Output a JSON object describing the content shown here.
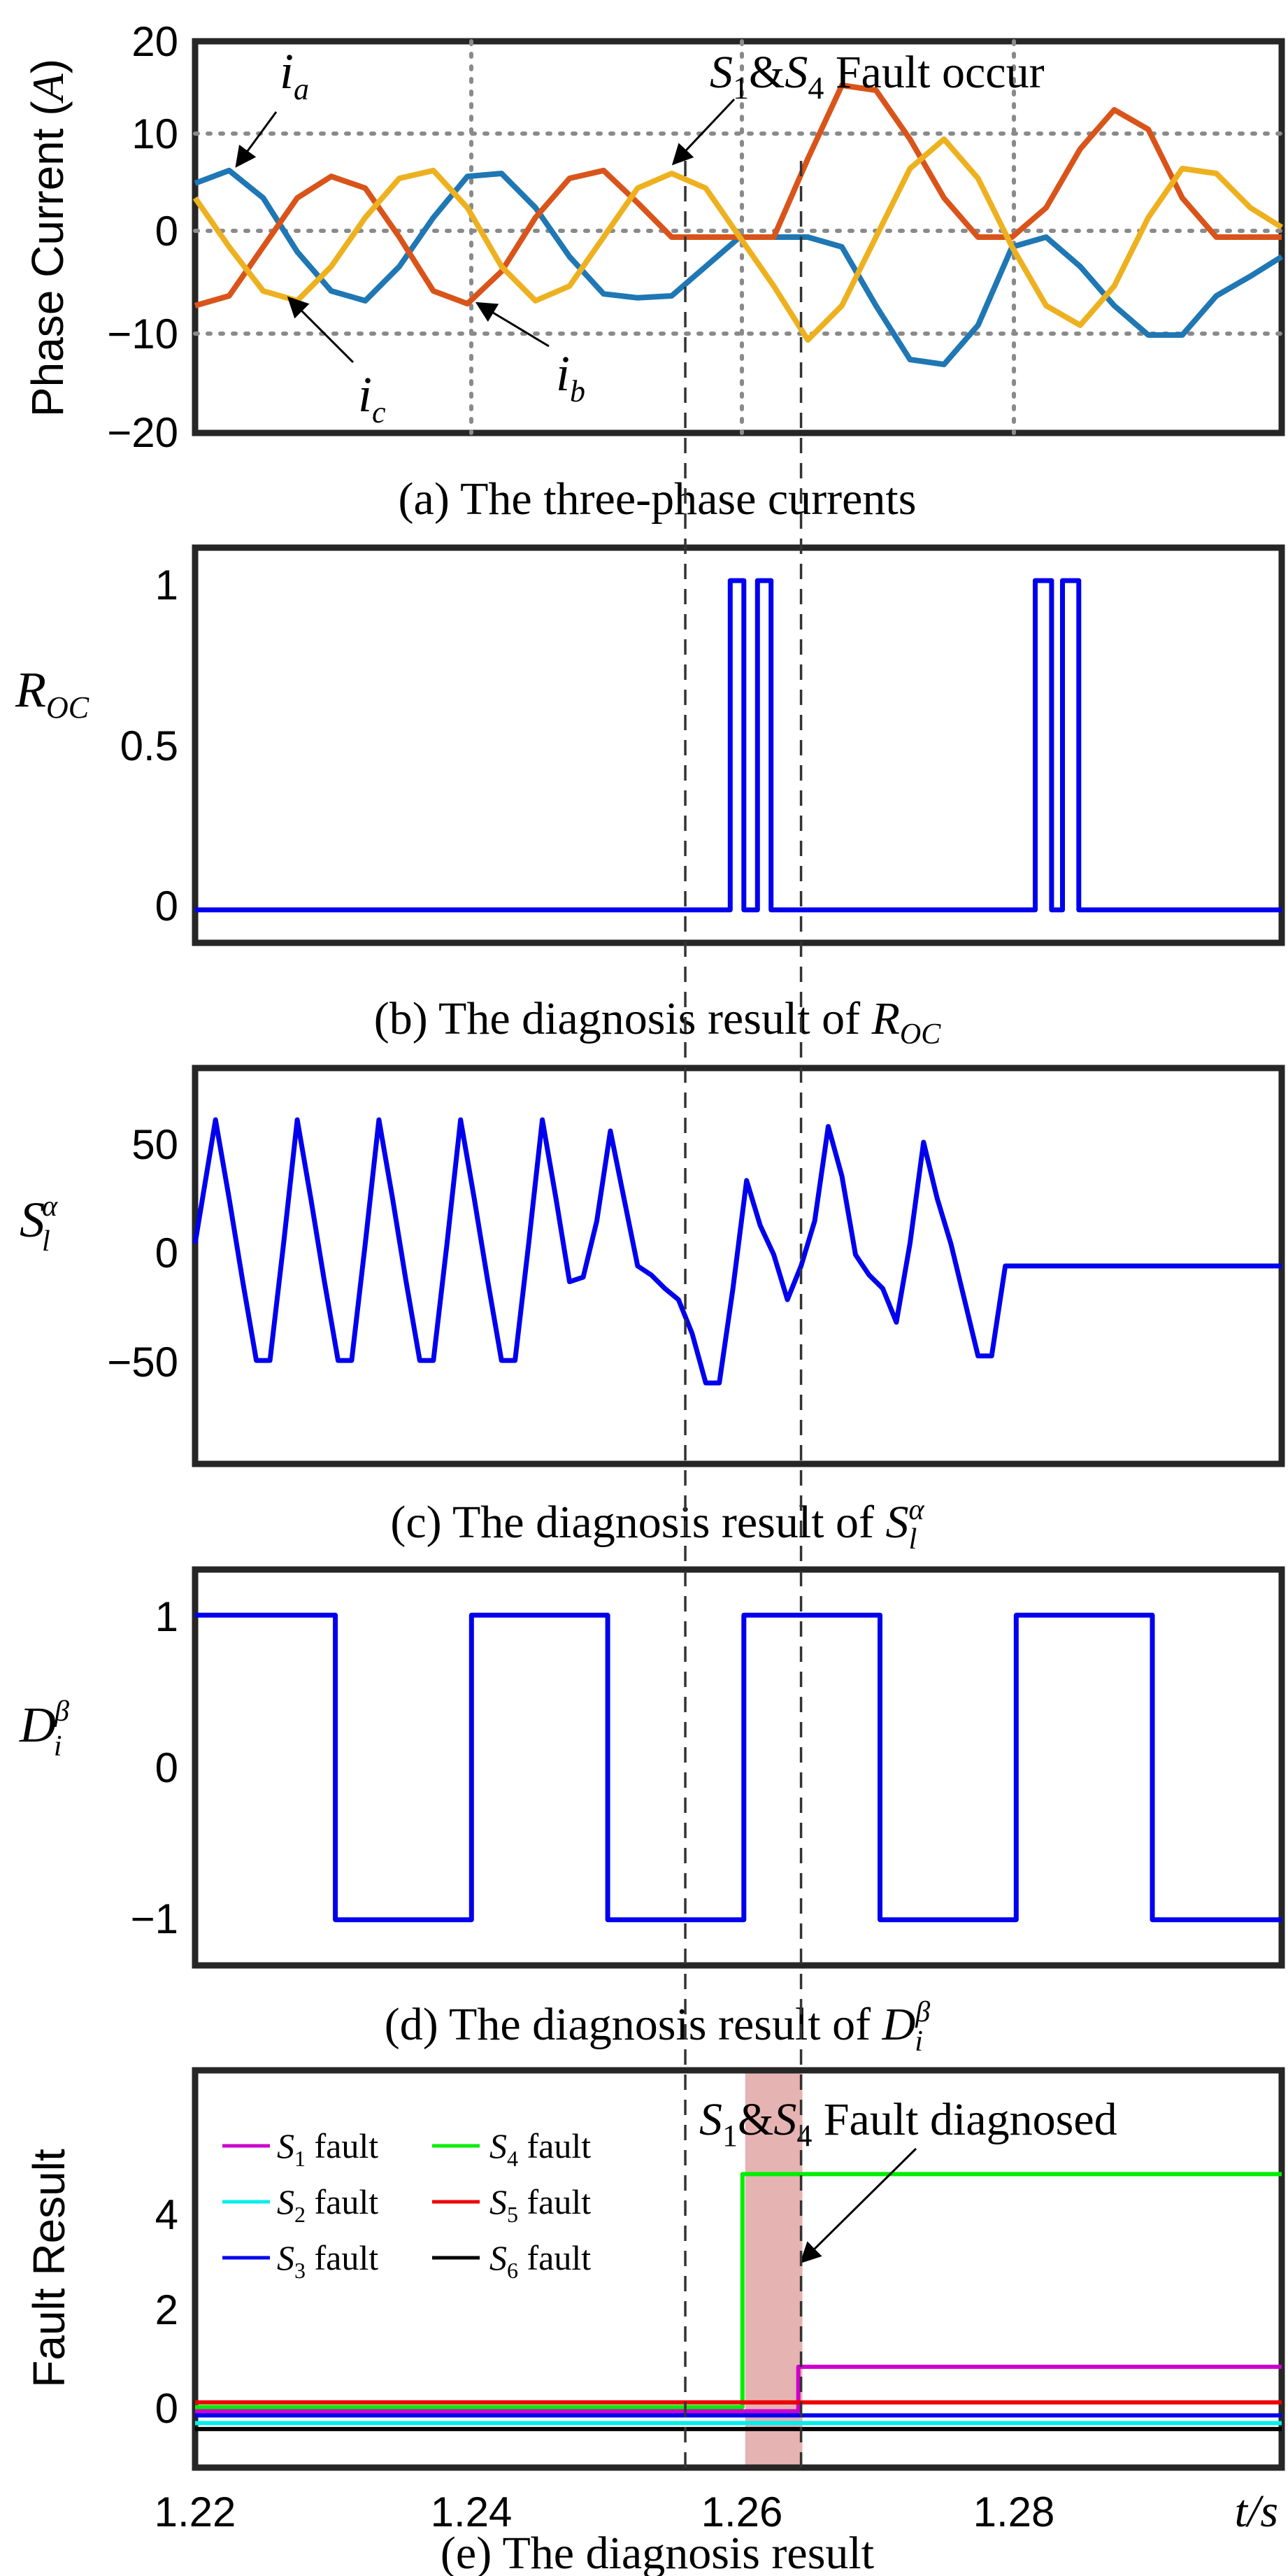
{
  "figure": {
    "xaxis": {
      "ticks": [
        "1.22",
        "1.24",
        "1.26",
        "1.28"
      ],
      "label": "t/s"
    },
    "markers": {
      "fault_time": 1.256,
      "diagnosed_time": 1.2645
    }
  },
  "chart_data": [
    {
      "id": "a",
      "type": "line",
      "caption": "(a) The three-phase currents",
      "ylabel": "Phase Current (A)",
      "yticks": [
        "20",
        "10",
        "0",
        "−10",
        "−20"
      ],
      "xlim": [
        1.22,
        1.2998
      ],
      "ylim": [
        -20,
        20
      ],
      "grid": true,
      "series": [
        {
          "name": "i_a",
          "color": "#1f77b4",
          "x": [
            1.22,
            1.2225,
            1.225,
            1.2275,
            1.23,
            1.2325,
            1.235,
            1.2375,
            1.24,
            1.2425,
            1.245,
            1.2475,
            1.25,
            1.2525,
            1.255,
            1.2575,
            1.26,
            1.2625,
            1.265,
            1.2675,
            1.27,
            1.2725,
            1.275,
            1.2775,
            1.28,
            1.2825,
            1.285,
            1.2875,
            1.29,
            1.2925,
            1.295,
            1.2975,
            1.2998
          ],
          "y": [
            5.5,
            6.8,
            4,
            -1.5,
            -5.5,
            -6.5,
            -3,
            2,
            6.2,
            6.5,
            3,
            -2,
            -5.8,
            -6.2,
            -6,
            -3,
            0,
            0,
            0,
            -1,
            -7,
            -12.5,
            -13,
            -9,
            -1,
            0,
            -3,
            -7,
            -10,
            -10,
            -6,
            -4,
            -2
          ]
        },
        {
          "name": "i_b",
          "color": "#d9541a",
          "x": [
            1.22,
            1.2225,
            1.225,
            1.2275,
            1.23,
            1.2325,
            1.235,
            1.2375,
            1.24,
            1.2425,
            1.245,
            1.2475,
            1.25,
            1.2525,
            1.255,
            1.2575,
            1.26,
            1.2625,
            1.265,
            1.2675,
            1.27,
            1.2725,
            1.275,
            1.2775,
            1.28,
            1.2825,
            1.285,
            1.2875,
            1.29,
            1.2925,
            1.295,
            1.2975,
            1.2998
          ],
          "y": [
            -7,
            -6,
            -1,
            4,
            6.2,
            5,
            0,
            -5.5,
            -6.8,
            -3.5,
            2,
            6,
            6.8,
            3.5,
            0,
            0,
            0,
            0,
            8,
            15.5,
            15,
            10,
            4,
            0,
            0,
            3,
            9,
            13,
            11,
            4,
            0,
            0,
            0
          ]
        },
        {
          "name": "i_c",
          "color": "#edb120",
          "x": [
            1.22,
            1.2225,
            1.225,
            1.2275,
            1.23,
            1.2325,
            1.235,
            1.2375,
            1.24,
            1.2425,
            1.245,
            1.2475,
            1.25,
            1.2525,
            1.255,
            1.2575,
            1.26,
            1.2625,
            1.265,
            1.2675,
            1.27,
            1.2725,
            1.275,
            1.2775,
            1.28,
            1.2825,
            1.285,
            1.2875,
            1.29,
            1.2925,
            1.295,
            1.2975,
            1.2998
          ],
          "y": [
            4,
            -1,
            -5.5,
            -6.5,
            -3,
            2,
            6,
            6.8,
            3,
            -3,
            -6.5,
            -5,
            0,
            5,
            6.5,
            5,
            0,
            -5,
            -10.5,
            -7,
            0,
            7,
            10,
            6,
            -1,
            -7,
            -9,
            -5,
            2,
            7,
            6.5,
            3,
            1
          ]
        }
      ],
      "annotations": [
        "i_a",
        "i_b",
        "i_c",
        "S₁&S₄ Fault occur"
      ]
    },
    {
      "id": "b",
      "type": "line",
      "caption": "(b) The diagnosis result of R_OC",
      "ylabel": "R_OC",
      "yticks": [
        "1",
        "0.5",
        "0"
      ],
      "xlim": [
        1.22,
        1.2998
      ],
      "ylim": [
        -0.1,
        1.1
      ],
      "series": [
        {
          "name": "R_OC",
          "color": "#0000ee",
          "x": [
            1.22,
            1.2593,
            1.2593,
            1.2603,
            1.2603,
            1.2613,
            1.2613,
            1.2623,
            1.2623,
            1.2655,
            1.2655,
            1.2675,
            1.2675,
            1.2817,
            1.2817,
            1.2829,
            1.2829,
            1.2837,
            1.2837,
            1.2849,
            1.2849,
            1.2998
          ],
          "y": [
            0,
            0,
            1,
            1,
            0,
            0,
            1,
            1,
            0,
            0,
            0,
            0,
            0,
            0,
            1,
            1,
            0,
            0,
            1,
            1,
            0,
            0
          ]
        }
      ]
    },
    {
      "id": "c",
      "type": "line",
      "caption": "(c) The diagnosis result of S_l^α",
      "ylabel": "S_l^α",
      "yticks": [
        "50",
        "0",
        "−50"
      ],
      "xlim": [
        1.22,
        1.2998
      ],
      "ylim": [
        -88,
        88
      ],
      "series": [
        {
          "name": "S_l^alpha",
          "color": "#0000ee",
          "x": [
            1.22,
            1.2215,
            1.2225,
            1.2235,
            1.2245,
            1.2255,
            1.2265,
            1.2275,
            1.2285,
            1.2295,
            1.2305,
            1.2315,
            1.2325,
            1.2335,
            1.2345,
            1.2355,
            1.2365,
            1.2375,
            1.2385,
            1.2395,
            1.2405,
            1.2415,
            1.2425,
            1.2435,
            1.2445,
            1.2455,
            1.2465,
            1.2475,
            1.2485,
            1.2495,
            1.2505,
            1.2515,
            1.2525,
            1.2535,
            1.2545,
            1.2555,
            1.2565,
            1.2575,
            1.2585,
            1.2595,
            1.2605,
            1.2615,
            1.2625,
            1.2635,
            1.2645,
            1.2655,
            1.2665,
            1.2675,
            1.2685,
            1.2695,
            1.2705,
            1.2715,
            1.2725,
            1.2735,
            1.2745,
            1.2755,
            1.2765,
            1.2775,
            1.2785,
            1.2795,
            1.2805,
            1.2815,
            1.2825,
            1.2835,
            1.2845,
            1.2855,
            1.2865,
            1.2875,
            1.2885,
            1.2895,
            1.2905,
            1.2915,
            1.2925,
            1.2935,
            1.2945,
            1.2955,
            1.2965,
            1.2975,
            1.2985,
            1.2998
          ],
          "y": [
            10,
            65,
            30,
            -7,
            -42,
            -42,
            10,
            65,
            30,
            -7,
            -42,
            -42,
            10,
            65,
            30,
            -7,
            -42,
            -42,
            10,
            65,
            30,
            -7,
            -42,
            -42,
            10,
            65,
            30,
            -7,
            -5,
            20,
            60,
            30,
            0,
            -4,
            -10,
            -15,
            -30,
            -52,
            -52,
            -10,
            38,
            18,
            5,
            -15,
            0,
            20,
            62,
            40,
            5,
            -4,
            -10,
            -25,
            10,
            55,
            30,
            10,
            -15,
            -40,
            -40,
            0,
            0,
            0,
            0,
            0,
            0,
            0,
            0,
            0,
            0,
            0,
            0,
            0,
            0,
            0,
            0,
            0,
            0,
            0,
            0,
            0
          ]
        }
      ]
    },
    {
      "id": "d",
      "type": "line",
      "caption": "(d) The diagnosis result of D_i^β",
      "ylabel": "D_i^β",
      "yticks": [
        "1",
        "0",
        "−1"
      ],
      "xlim": [
        1.22,
        1.2998
      ],
      "ylim": [
        -1.3,
        1.3
      ],
      "series": [
        {
          "name": "D_i^beta",
          "color": "#0000ee",
          "x": [
            1.22,
            1.2303,
            1.2303,
            1.2403,
            1.2403,
            1.2503,
            1.2503,
            1.2603,
            1.2603,
            1.2703,
            1.2703,
            1.2803,
            1.2803,
            1.2903,
            1.2903,
            1.2998
          ],
          "y": [
            1,
            1,
            -1,
            -1,
            1,
            1,
            -1,
            -1,
            1,
            1,
            -1,
            -1,
            1,
            1,
            -1,
            -1
          ]
        }
      ]
    },
    {
      "id": "e",
      "type": "line",
      "caption": "(e) The diagnosis result",
      "ylabel": "Fault Result",
      "yticks": [
        "4",
        "2",
        "0"
      ],
      "xlim": [
        1.22,
        1.2998
      ],
      "ylim": [
        -0.6,
        6.1
      ],
      "highlight": [
        1.2604,
        1.2646
      ],
      "series": [
        {
          "name": "S1 fault",
          "color": "#cc00cc",
          "x": [
            1.22,
            1.2643,
            1.2643,
            1.2998
          ],
          "y": [
            0.35,
            0.35,
            1.1,
            1.1
          ]
        },
        {
          "name": "S2 fault",
          "color": "#00eeee",
          "x": [
            1.22,
            1.2998
          ],
          "y": [
            0.15,
            0.15
          ]
        },
        {
          "name": "S3 fault",
          "color": "#0000ee",
          "x": [
            1.22,
            1.2998
          ],
          "y": [
            0.28,
            0.28
          ]
        },
        {
          "name": "S4 fault",
          "color": "#00ee00",
          "x": [
            1.22,
            1.2602,
            1.2602,
            1.2998
          ],
          "y": [
            0.42,
            0.42,
            4.35,
            4.35
          ]
        },
        {
          "name": "S5 fault",
          "color": "#ee0000",
          "x": [
            1.22,
            1.2998
          ],
          "y": [
            0.5,
            0.5
          ]
        },
        {
          "name": "S6 fault",
          "color": "#000000",
          "x": [
            1.22,
            1.2998
          ],
          "y": [
            0.05,
            0.05
          ]
        }
      ],
      "annotations": [
        "S₁&S₄ Fault diagnosed"
      ]
    }
  ]
}
